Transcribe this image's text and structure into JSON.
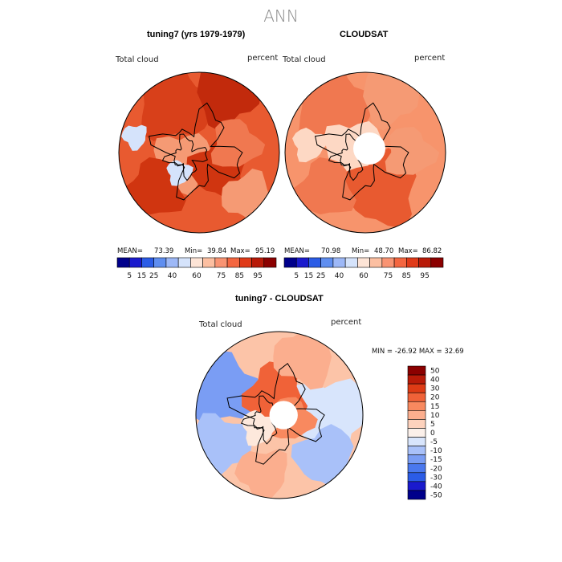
{
  "title": "ANN",
  "colors": {
    "cbar_abs": [
      "#00008b",
      "#1a1acd",
      "#2b5ce6",
      "#5f8ef0",
      "#9db8f7",
      "#d5e3fb",
      "#fde4d6",
      "#fcbfa1",
      "#f99473",
      "#f46640",
      "#e03a18",
      "#b81a08",
      "#8b0000"
    ],
    "cbar_diff": [
      "#00008b",
      "#1a1acd",
      "#2b5ce6",
      "#4a78ee",
      "#7a9df4",
      "#a9c1f9",
      "#d8e5fc",
      "#fbf0ea",
      "#fdd2bd",
      "#fbae8e",
      "#f8895f",
      "#f06238",
      "#de3b15",
      "#b81a08",
      "#8b0000"
    ]
  },
  "chart_data": [
    {
      "type": "heatmap",
      "title": "tuning7 (yrs 1979-1979)",
      "variable": "Total cloud",
      "units": "percent",
      "stats": {
        "mean": "73.39",
        "min": "39.84",
        "max": "95.19"
      },
      "stats_labels": {
        "mean": "MEAN=",
        "min": "Min=",
        "max": "Max="
      },
      "colorbar_ticks": [
        "5",
        "15",
        "25",
        "40",
        "60",
        "75",
        "85",
        "95"
      ],
      "projection": "polar stereographic (north)"
    },
    {
      "type": "heatmap",
      "title": "CLOUDSAT",
      "variable": "Total cloud",
      "units": "percent",
      "stats": {
        "mean": "70.98",
        "min": "48.70",
        "max": "86.82"
      },
      "stats_labels": {
        "mean": "MEAN=",
        "min": "Min=",
        "max": "Max="
      },
      "colorbar_ticks": [
        "5",
        "15",
        "25",
        "40",
        "60",
        "75",
        "85",
        "95"
      ],
      "projection": "polar stereographic (north)"
    },
    {
      "type": "heatmap",
      "title": "tuning7 - CLOUDSAT",
      "variable": "Total cloud",
      "units": "percent",
      "stats_text": "MIN = -26.92 MAX =  32.69",
      "colorbar_ticks": [
        "50",
        "40",
        "30",
        "20",
        "15",
        "10",
        "5",
        "0",
        "-5",
        "-10",
        "-15",
        "-20",
        "-30",
        "-40",
        "-50"
      ],
      "projection": "polar stereographic (north)"
    }
  ]
}
